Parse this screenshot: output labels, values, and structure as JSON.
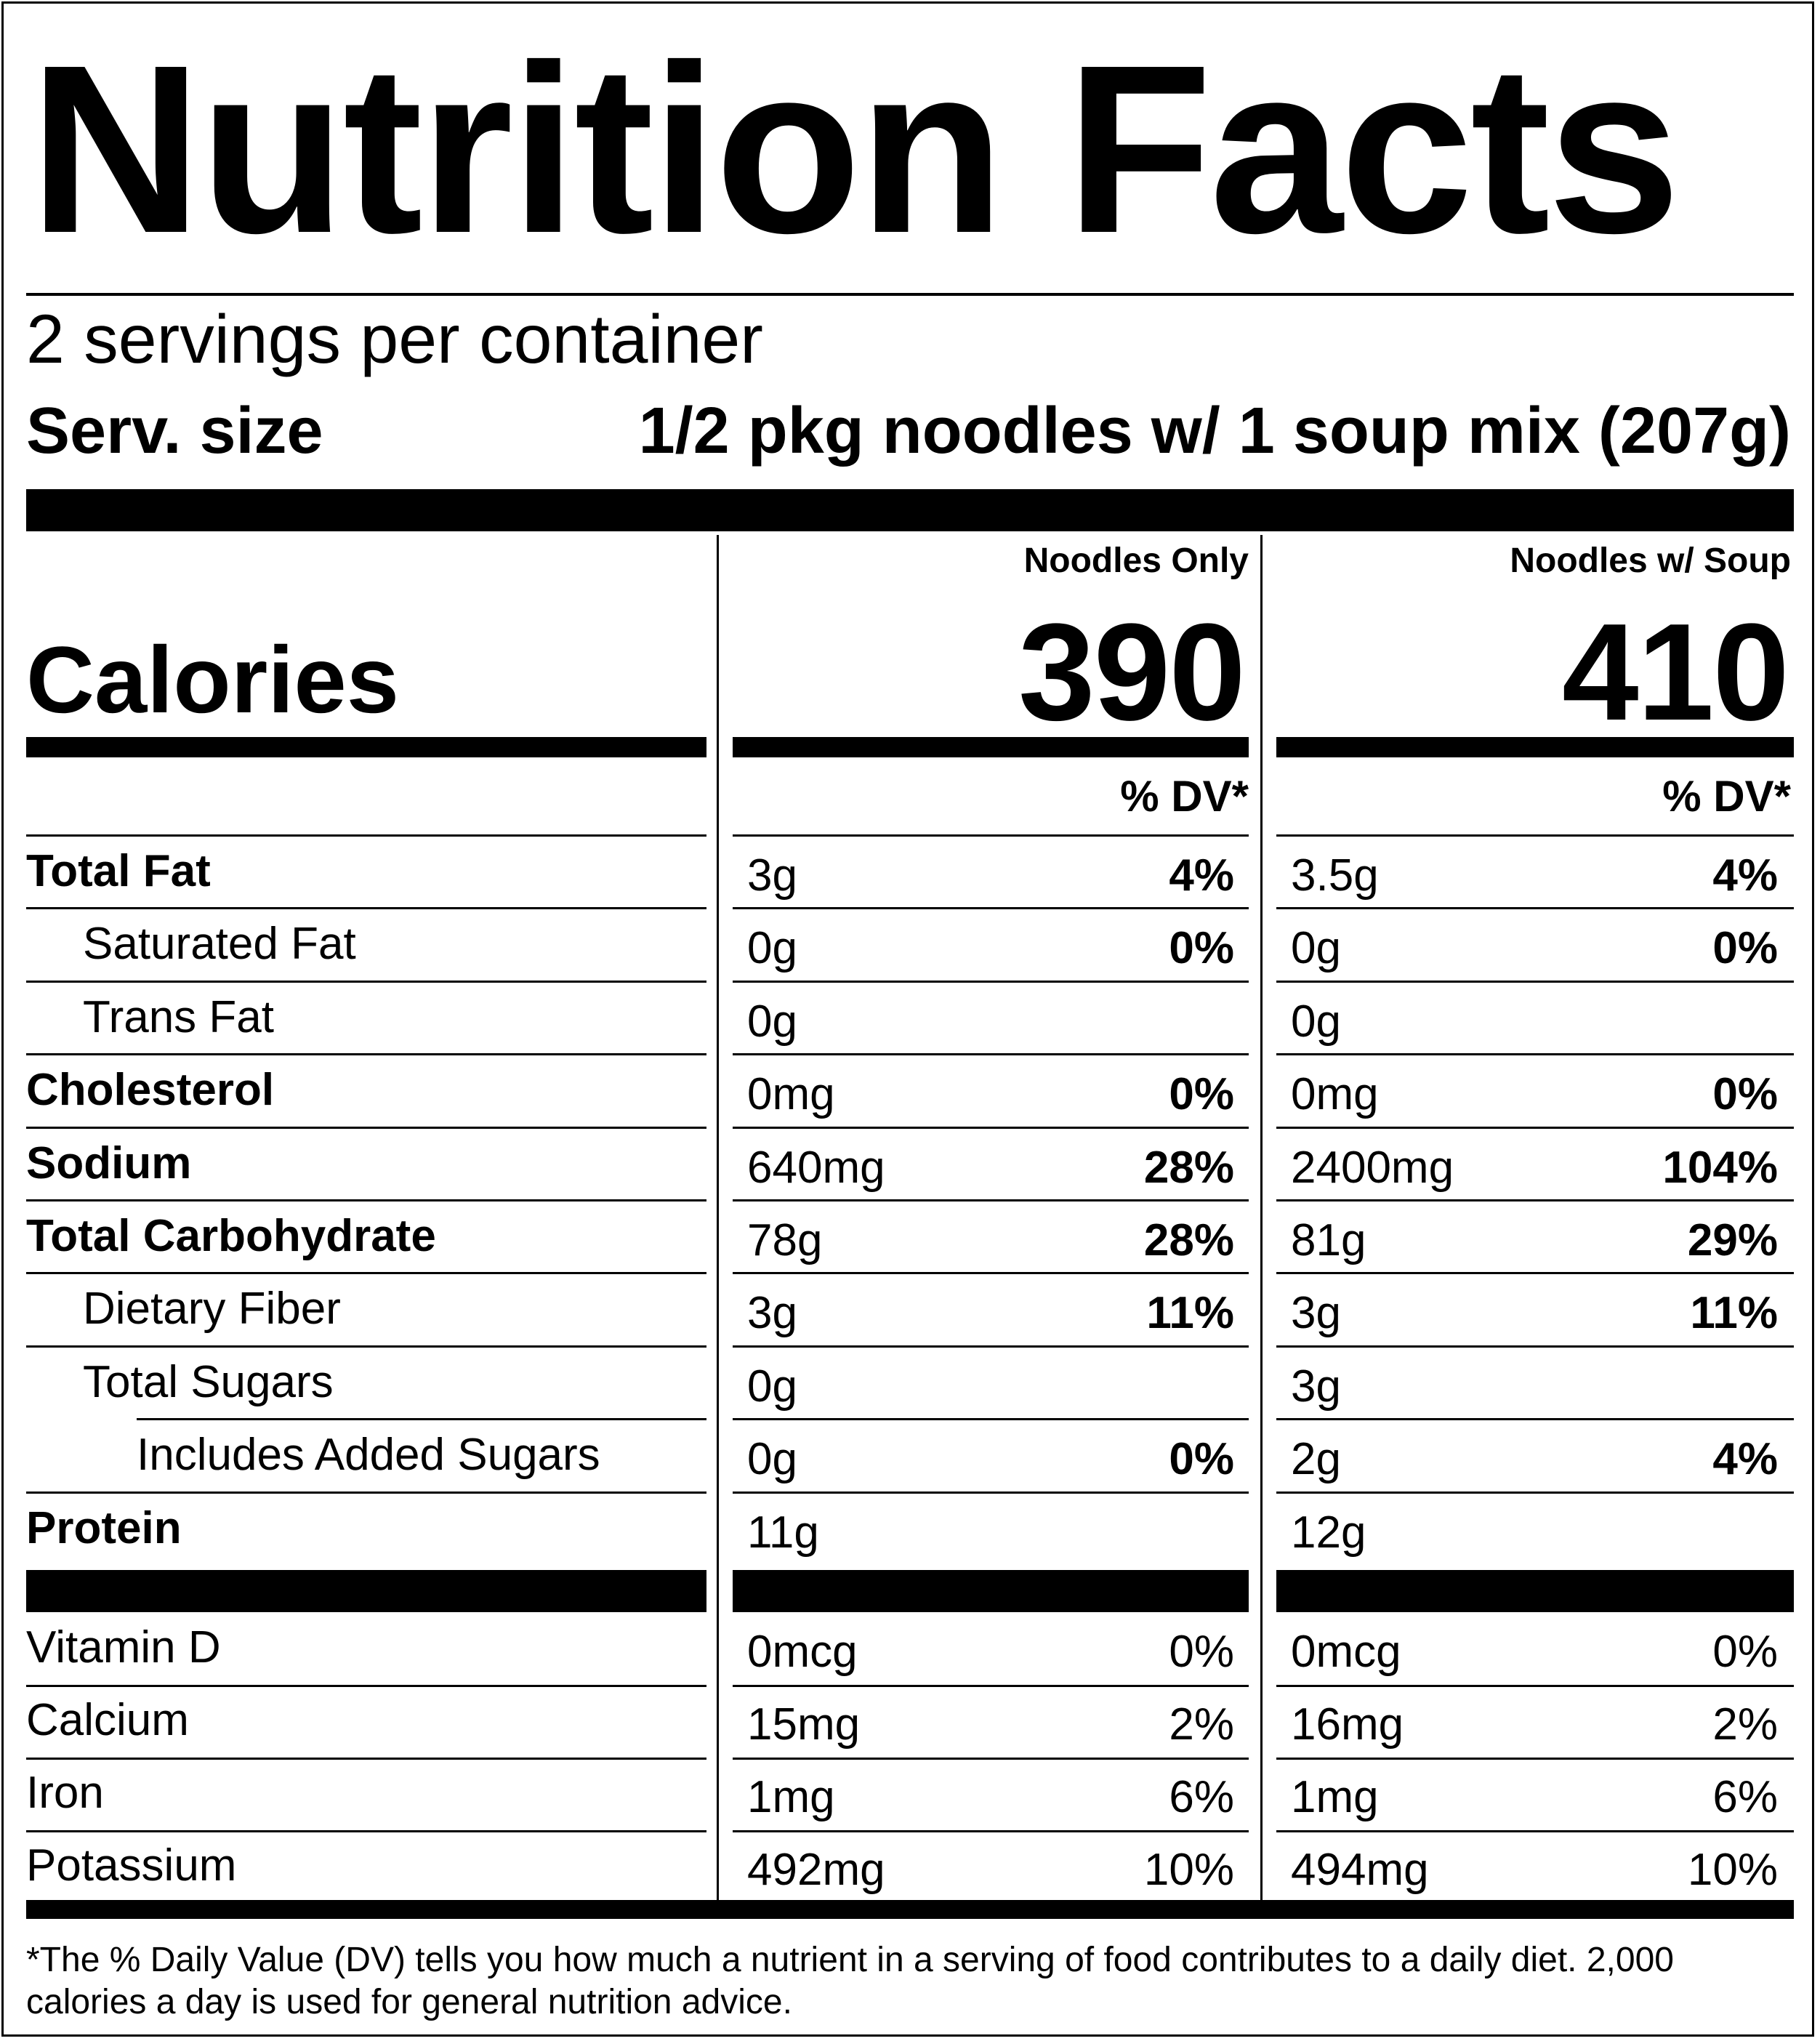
{
  "title": "Nutrition Facts",
  "servings_per_container": "2 servings per container",
  "serving_size_label": "Serv. size",
  "serving_size_value": "1/2 pkg noodles w/ 1 soup mix (207g)",
  "calories_label": "Calories",
  "columns": [
    {
      "name": "Noodles Only",
      "calories": "390",
      "dv_header": "% DV*"
    },
    {
      "name": "Noodles w/ Soup",
      "calories": "410",
      "dv_header": "% DV*"
    }
  ],
  "nutrients": [
    {
      "label": "Total Fat",
      "style": "bold",
      "indent": 0,
      "c1_amount": "3g",
      "c1_dv": "4%",
      "c2_amount": "3.5g",
      "c2_dv": "4%"
    },
    {
      "label": "Saturated Fat",
      "style": "normal",
      "indent": 1,
      "c1_amount": "0g",
      "c1_dv": "0%",
      "c2_amount": "0g",
      "c2_dv": "0%"
    },
    {
      "label": "Trans Fat",
      "style": "normal",
      "indent": 1,
      "c1_amount": "0g",
      "c1_dv": "",
      "c2_amount": "0g",
      "c2_dv": ""
    },
    {
      "label": "Cholesterol",
      "style": "bold",
      "indent": 0,
      "c1_amount": "0mg",
      "c1_dv": "0%",
      "c2_amount": "0mg",
      "c2_dv": "0%"
    },
    {
      "label": "Sodium",
      "style": "bold",
      "indent": 0,
      "c1_amount": "640mg",
      "c1_dv": "28%",
      "c2_amount": "2400mg",
      "c2_dv": "104%"
    },
    {
      "label": "Total Carbohydrate",
      "style": "bold",
      "indent": 0,
      "c1_amount": "78g",
      "c1_dv": "28%",
      "c2_amount": "81g",
      "c2_dv": "29%"
    },
    {
      "label": "Dietary Fiber",
      "style": "normal",
      "indent": 1,
      "c1_amount": "3g",
      "c1_dv": "11%",
      "c2_amount": "3g",
      "c2_dv": "11%"
    },
    {
      "label": "Total Sugars",
      "style": "normal",
      "indent": 1,
      "c1_amount": "0g",
      "c1_dv": "",
      "c2_amount": "3g",
      "c2_dv": ""
    },
    {
      "label": "Includes Added Sugars",
      "style": "normal",
      "indent": 2,
      "c1_amount": "0g",
      "c1_dv": "0%",
      "c2_amount": "2g",
      "c2_dv": "4%"
    },
    {
      "label": "Protein",
      "style": "bold",
      "indent": 0,
      "c1_amount": "11g",
      "c1_dv": "",
      "c2_amount": "12g",
      "c2_dv": ""
    }
  ],
  "vitamins": [
    {
      "label": "Vitamin D",
      "c1_amount": "0mcg",
      "c1_dv": "0%",
      "c2_amount": "0mcg",
      "c2_dv": "0%"
    },
    {
      "label": "Calcium",
      "c1_amount": "15mg",
      "c1_dv": "2%",
      "c2_amount": "16mg",
      "c2_dv": "2%"
    },
    {
      "label": "Iron",
      "c1_amount": "1mg",
      "c1_dv": "6%",
      "c2_amount": "1mg",
      "c2_dv": "6%"
    },
    {
      "label": "Potassium",
      "c1_amount": "492mg",
      "c1_dv": "10%",
      "c2_amount": "494mg",
      "c2_dv": "10%"
    }
  ],
  "footnote": "*The % Daily Value (DV) tells you how much a nutrient in a serving of food contributes to a daily diet. 2,000 calories a day is used for general nutrition advice."
}
